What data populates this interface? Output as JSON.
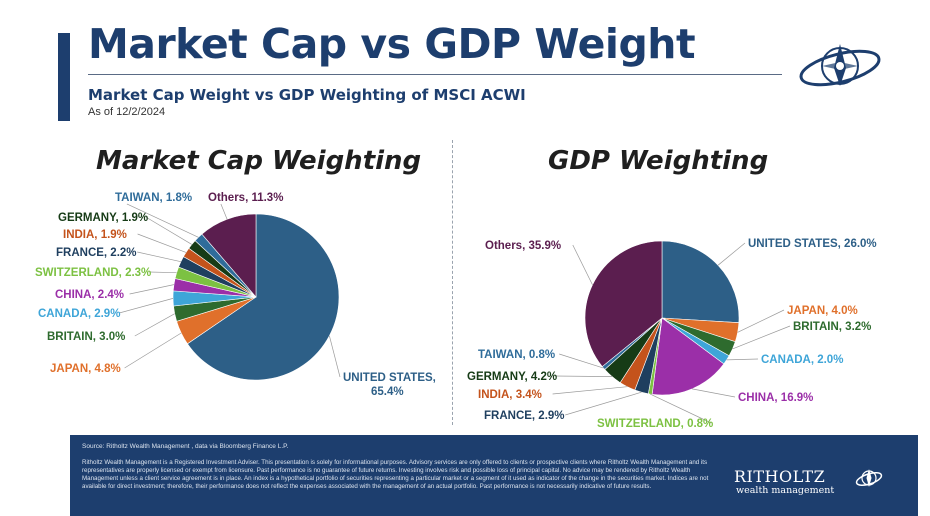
{
  "header": {
    "title": "Market Cap vs GDP Weight",
    "subtitle": "Market Cap Weight vs GDP Weighting of MSCI ACWI",
    "as_of": "As of 12/2/2024"
  },
  "icons": {
    "logo": "ritholtz-compass-emblem-icon",
    "brand": "ritholtz-emblem-icon"
  },
  "colors": {
    "title": "#1d3e6e",
    "footer_bg": "#1d3e6e",
    "united_states": "#2d5f87",
    "japan": "#e0702b",
    "britain": "#2e6b2e",
    "canada": "#3ea5d8",
    "china": "#9b2fa8",
    "switzerland": "#7cc142",
    "france": "#1f3f5f",
    "india": "#c4531c",
    "germany": "#163b16",
    "taiwan": "#2f6c9a",
    "others": "#5b1e4f"
  },
  "chart_data": [
    {
      "type": "pie",
      "title": "Market Cap Weighting",
      "slices": [
        {
          "label": "UNITED STATES, 65.4%",
          "name": "UNITED STATES",
          "value": 65.4,
          "color": "#2d5f87"
        },
        {
          "label": "JAPAN, 4.8%",
          "name": "JAPAN",
          "value": 4.8,
          "color": "#e0702b"
        },
        {
          "label": "BRITAIN, 3.0%",
          "name": "BRITAIN",
          "value": 3.0,
          "color": "#2e6b2e"
        },
        {
          "label": "CANADA, 2.9%",
          "name": "CANADA",
          "value": 2.9,
          "color": "#3ea5d8"
        },
        {
          "label": "CHINA, 2.4%",
          "name": "CHINA",
          "value": 2.4,
          "color": "#9b2fa8"
        },
        {
          "label": "SWITZERLAND, 2.3%",
          "name": "SWITZERLAND",
          "value": 2.3,
          "color": "#7cc142"
        },
        {
          "label": "FRANCE, 2.2%",
          "name": "FRANCE",
          "value": 2.2,
          "color": "#1f3f5f"
        },
        {
          "label": "INDIA, 1.9%",
          "name": "INDIA",
          "value": 1.9,
          "color": "#c4531c"
        },
        {
          "label": "GERMANY, 1.9%",
          "name": "GERMANY",
          "value": 1.9,
          "color": "#163b16"
        },
        {
          "label": "TAIWAN, 1.8%",
          "name": "TAIWAN",
          "value": 1.8,
          "color": "#2f6c9a"
        },
        {
          "label": "Others, 11.3%",
          "name": "Others",
          "value": 11.3,
          "color": "#5b1e4f"
        }
      ]
    },
    {
      "type": "pie",
      "title": "GDP Weighting",
      "slices": [
        {
          "label": "UNITED STATES, 26.0%",
          "name": "UNITED STATES",
          "value": 26.0,
          "color": "#2d5f87"
        },
        {
          "label": "JAPAN, 4.0%",
          "name": "JAPAN",
          "value": 4.0,
          "color": "#e0702b"
        },
        {
          "label": "BRITAIN, 3.2%",
          "name": "BRITAIN",
          "value": 3.2,
          "color": "#2e6b2e"
        },
        {
          "label": "CANADA, 2.0%",
          "name": "CANADA",
          "value": 2.0,
          "color": "#3ea5d8"
        },
        {
          "label": "CHINA, 16.9%",
          "name": "CHINA",
          "value": 16.9,
          "color": "#9b2fa8"
        },
        {
          "label": "SWITZERLAND, 0.8%",
          "name": "SWITZERLAND",
          "value": 0.8,
          "color": "#7cc142"
        },
        {
          "label": "FRANCE, 2.9%",
          "name": "FRANCE",
          "value": 2.9,
          "color": "#1f3f5f"
        },
        {
          "label": "INDIA, 3.4%",
          "name": "INDIA",
          "value": 3.4,
          "color": "#c4531c"
        },
        {
          "label": "GERMANY, 4.2%",
          "name": "GERMANY",
          "value": 4.2,
          "color": "#163b16"
        },
        {
          "label": "TAIWAN, 0.8%",
          "name": "TAIWAN",
          "value": 0.8,
          "color": "#2f6c9a"
        },
        {
          "label": "Others, 35.9%",
          "name": "Others",
          "value": 35.9,
          "color": "#5b1e4f"
        }
      ]
    }
  ],
  "footer": {
    "source": "Source: Ritholtz Wealth Management , data via Bloomberg Finance L.P.",
    "disclaimer": "Ritholtz Wealth Management is a Registered Investment Adviser. This presentation is solely for informational purposes. Advisory services are only offered to clients or prospective clients where Ritholtz Wealth Management and its representatives are properly licensed or exempt from licensure. Past performance is no guarantee of future returns. Investing involves risk and possible loss of principal capital. No advice may be rendered by Ritholtz Wealth Management unless a client service agreement is in place. An index is a hypothetical portfolio of securities representing a particular market or a segment of it used as indicator of the change in the securities market. Indices are not available for direct investment; therefore, their performance does not reflect the expenses associated with the management of an actual portfolio. Past performance is not necessarily indicative of future results.",
    "brand_name": "RITHOLTZ",
    "brand_sub": "wealth management"
  }
}
